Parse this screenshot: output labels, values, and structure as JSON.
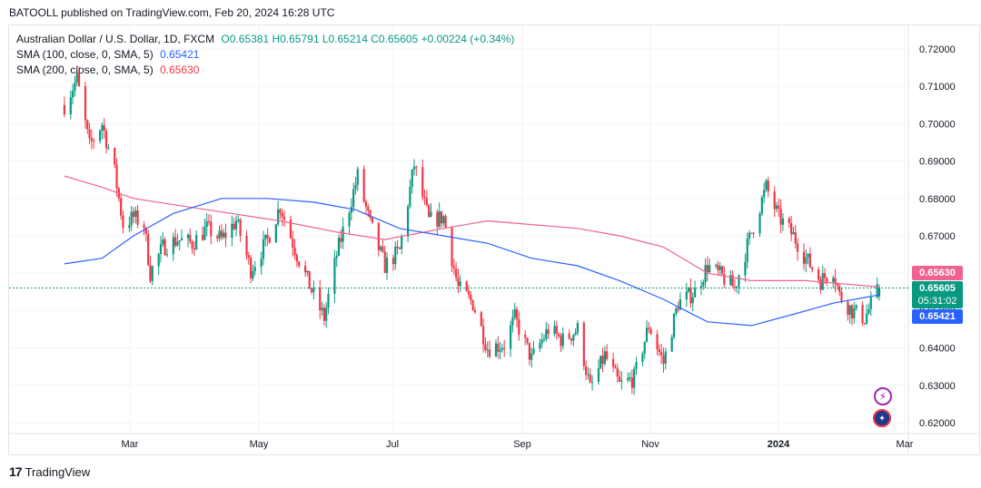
{
  "header": {
    "published": "BATOOLL published on TradingView.com, Feb 20, 2024 16:28 UTC"
  },
  "legend": {
    "symbol": "Australian Dollar / U.S. Dollar, 1D, FXCM",
    "ohlc": "O0.65381 H0.65791 L0.65214 C0.65605 +0.00224 (+0.34%)",
    "sma100_label": "SMA (100, close, 0, SMA, 5)",
    "sma100_value": "0.65421",
    "sma200_label": "SMA (200, close, 0, SMA, 5)",
    "sma200_value": "0.65630"
  },
  "tags": {
    "sma200": "0.65630",
    "price": "0.65605",
    "countdown": "05:31:02",
    "sma100": "0.65421"
  },
  "footer": {
    "brand": "TradingView",
    "logo": "17"
  },
  "colors": {
    "up": "#089981",
    "down": "#f23645",
    "sma100": "#2962ff",
    "sma200": "#f06292",
    "grid": "#f0f3fa",
    "axis_text": "#131722",
    "price_tag": "#089981"
  },
  "icons": [
    "lightning-icon",
    "australia-flag-icon"
  ],
  "chart_data": {
    "type": "candlestick",
    "y_ticks": [
      "0.72000",
      "0.71000",
      "0.70000",
      "0.69000",
      "0.68000",
      "0.67000",
      "0.66000",
      "0.65000",
      "0.64000",
      "0.63000",
      "0.62000"
    ],
    "x_ticks": [
      "Mar",
      "May",
      "Jul",
      "Sep",
      "Nov",
      "2024",
      "Mar"
    ],
    "ylim": [
      0.6175,
      0.7245
    ],
    "last_price": 0.65605,
    "anchors": [
      [
        "2023-01-27",
        0.705
      ],
      [
        "2023-02-02",
        0.712
      ],
      [
        "2023-02-08",
        0.694
      ],
      [
        "2023-02-14",
        0.7
      ],
      [
        "2023-02-20",
        0.687
      ],
      [
        "2023-02-24",
        0.673
      ],
      [
        "2023-03-01",
        0.675
      ],
      [
        "2023-03-06",
        0.673
      ],
      [
        "2023-03-09",
        0.66
      ],
      [
        "2023-03-15",
        0.667
      ],
      [
        "2023-03-22",
        0.669
      ],
      [
        "2023-03-29",
        0.668
      ],
      [
        "2023-04-05",
        0.672
      ],
      [
        "2023-04-12",
        0.669
      ],
      [
        "2023-04-19",
        0.674
      ],
      [
        "2023-04-26",
        0.661
      ],
      [
        "2023-05-04",
        0.669
      ],
      [
        "2023-05-10",
        0.678
      ],
      [
        "2023-05-18",
        0.665
      ],
      [
        "2023-05-26",
        0.654
      ],
      [
        "2023-05-31",
        0.648
      ],
      [
        "2023-06-06",
        0.665
      ],
      [
        "2023-06-16",
        0.686
      ],
      [
        "2023-06-22",
        0.673
      ],
      [
        "2023-06-29",
        0.662
      ],
      [
        "2023-07-06",
        0.666
      ],
      [
        "2023-07-13",
        0.689
      ],
      [
        "2023-07-20",
        0.674
      ],
      [
        "2023-07-27",
        0.675
      ],
      [
        "2023-08-03",
        0.656
      ],
      [
        "2023-08-10",
        0.652
      ],
      [
        "2023-08-17",
        0.64
      ],
      [
        "2023-08-25",
        0.641
      ],
      [
        "2023-08-30",
        0.648
      ],
      [
        "2023-09-07",
        0.637
      ],
      [
        "2023-09-15",
        0.645
      ],
      [
        "2023-09-22",
        0.642
      ],
      [
        "2023-09-29",
        0.645
      ],
      [
        "2023-10-05",
        0.629
      ],
      [
        "2023-10-12",
        0.638
      ],
      [
        "2023-10-19",
        0.63
      ],
      [
        "2023-10-26",
        0.632
      ],
      [
        "2023-11-02",
        0.646
      ],
      [
        "2023-11-09",
        0.636
      ],
      [
        "2023-11-16",
        0.652
      ],
      [
        "2023-11-24",
        0.655
      ],
      [
        "2023-11-30",
        0.662
      ],
      [
        "2023-12-07",
        0.659
      ],
      [
        "2023-12-13",
        0.656
      ],
      [
        "2023-12-21",
        0.671
      ],
      [
        "2023-12-28",
        0.683
      ],
      [
        "2024-01-03",
        0.675
      ],
      [
        "2024-01-10",
        0.67
      ],
      [
        "2024-01-16",
        0.664
      ],
      [
        "2024-01-23",
        0.658
      ],
      [
        "2024-01-29",
        0.661
      ],
      [
        "2024-02-01",
        0.654
      ],
      [
        "2024-02-07",
        0.65
      ],
      [
        "2024-02-13",
        0.648
      ],
      [
        "2024-02-20",
        0.65605
      ]
    ],
    "sma100": [
      [
        "2023-01-27",
        0.6625
      ],
      [
        "2023-02-14",
        0.664
      ],
      [
        "2023-03-01",
        0.67
      ],
      [
        "2023-03-20",
        0.676
      ],
      [
        "2023-04-12",
        0.68
      ],
      [
        "2023-05-04",
        0.68
      ],
      [
        "2023-05-26",
        0.679
      ],
      [
        "2023-06-15",
        0.677
      ],
      [
        "2023-07-06",
        0.672
      ],
      [
        "2023-07-27",
        0.67
      ],
      [
        "2023-08-17",
        0.668
      ],
      [
        "2023-09-07",
        0.664
      ],
      [
        "2023-09-29",
        0.662
      ],
      [
        "2023-10-19",
        0.658
      ],
      [
        "2023-11-09",
        0.653
      ],
      [
        "2023-11-30",
        0.647
      ],
      [
        "2023-12-21",
        0.646
      ],
      [
        "2024-01-10",
        0.649
      ],
      [
        "2024-01-29",
        0.652
      ],
      [
        "2024-02-20",
        0.65421
      ]
    ],
    "sma200": [
      [
        "2023-01-27",
        0.686
      ],
      [
        "2023-02-14",
        0.683
      ],
      [
        "2023-03-01",
        0.68
      ],
      [
        "2023-04-05",
        0.677
      ],
      [
        "2023-05-10",
        0.674
      ],
      [
        "2023-06-06",
        0.671
      ],
      [
        "2023-06-29",
        0.669
      ],
      [
        "2023-07-27",
        0.672
      ],
      [
        "2023-08-17",
        0.674
      ],
      [
        "2023-09-07",
        0.673
      ],
      [
        "2023-09-29",
        0.672
      ],
      [
        "2023-10-19",
        0.67
      ],
      [
        "2023-11-09",
        0.667
      ],
      [
        "2023-11-30",
        0.66
      ],
      [
        "2023-12-21",
        0.658
      ],
      [
        "2024-01-16",
        0.658
      ],
      [
        "2024-02-20",
        0.6563
      ]
    ]
  }
}
